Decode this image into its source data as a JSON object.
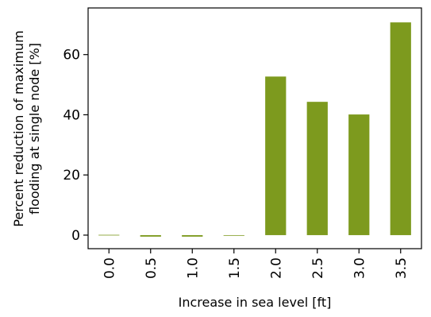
{
  "chart_data": {
    "type": "bar",
    "title": "",
    "xlabel": "Increase in sea level [ft]",
    "ylabel_lines": [
      "Percent reduction of maximum",
      "flooding at single node [%]"
    ],
    "categories": [
      "0.0",
      "0.5",
      "1.0",
      "1.5",
      "2.0",
      "2.5",
      "3.0",
      "3.5"
    ],
    "values": [
      0.1,
      -0.5,
      -0.5,
      0,
      52.7,
      44.3,
      40.1,
      70.7
    ],
    "ylim": [
      -4.5,
      75.5
    ],
    "yticks": [
      0,
      20,
      40,
      60
    ],
    "bar_color": "#7d9a1e",
    "grid": false,
    "legend": "none"
  }
}
